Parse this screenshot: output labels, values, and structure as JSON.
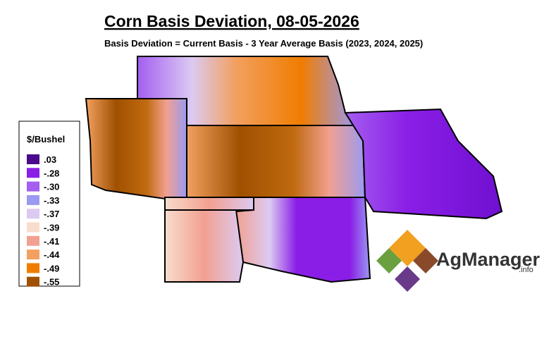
{
  "header": {
    "title": "Corn Basis Deviation, 08-05-2026",
    "subtitle": "Basis Deviation = Current Basis - 3 Year Average Basis (2023, 2024, 2025)"
  },
  "legend": {
    "title": "$/Bushel",
    "items": [
      {
        "label": ".03",
        "color": "#4b0a8c"
      },
      {
        "label": "-.28",
        "color": "#8a1ee6"
      },
      {
        "label": "-.30",
        "color": "#a45ef0"
      },
      {
        "label": "-.33",
        "color": "#9a9af2"
      },
      {
        "label": "-.37",
        "color": "#dccaf2"
      },
      {
        "label": "-.39",
        "color": "#f8dccc"
      },
      {
        "label": "-.41",
        "color": "#f2a090"
      },
      {
        "label": "-.44",
        "color": "#f2a060"
      },
      {
        "label": "-.49",
        "color": "#f07d00"
      },
      {
        "label": "-.55",
        "color": "#a05000"
      }
    ]
  },
  "logo": {
    "name": "AgManager",
    "suffix": ".info"
  }
}
